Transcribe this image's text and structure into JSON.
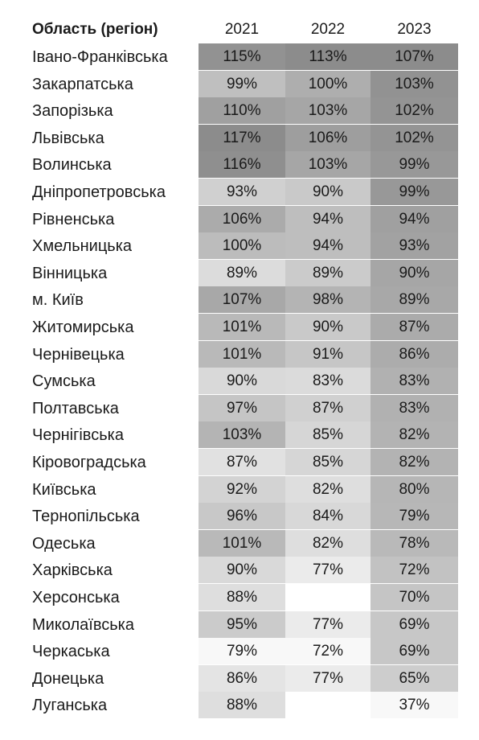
{
  "chart_data": {
    "type": "heatmap",
    "header": {
      "region_label": "Область (регіон)",
      "years": [
        "2021",
        "2022",
        "2023"
      ]
    },
    "rows": [
      {
        "region": "Івано-Франківська",
        "values": [
          "115%",
          "113%",
          "107%"
        ]
      },
      {
        "region": "Закарпатська",
        "values": [
          "99%",
          "100%",
          "103%"
        ]
      },
      {
        "region": "Запорізька",
        "values": [
          "110%",
          "103%",
          "102%"
        ]
      },
      {
        "region": "Львівська",
        "values": [
          "117%",
          "106%",
          "102%"
        ]
      },
      {
        "region": "Волинська",
        "values": [
          "116%",
          "103%",
          "99%"
        ]
      },
      {
        "region": "Дніпропетровська",
        "values": [
          "93%",
          "90%",
          "99%"
        ]
      },
      {
        "region": "Рівненська",
        "values": [
          "106%",
          "94%",
          "94%"
        ]
      },
      {
        "region": "Хмельницька",
        "values": [
          "100%",
          "94%",
          "93%"
        ]
      },
      {
        "region": "Вінницька",
        "values": [
          "89%",
          "89%",
          "90%"
        ]
      },
      {
        "region": "м. Київ",
        "values": [
          "107%",
          "98%",
          "89%"
        ]
      },
      {
        "region": "Житомирська",
        "values": [
          "101%",
          "90%",
          "87%"
        ]
      },
      {
        "region": "Чернівецька",
        "values": [
          "101%",
          "91%",
          "86%"
        ]
      },
      {
        "region": "Сумська",
        "values": [
          "90%",
          "83%",
          "83%"
        ]
      },
      {
        "region": "Полтавська",
        "values": [
          "97%",
          "87%",
          "83%"
        ]
      },
      {
        "region": "Чернігівська",
        "values": [
          "103%",
          "85%",
          "82%"
        ]
      },
      {
        "region": "Кіровоградська",
        "values": [
          "87%",
          "85%",
          "82%"
        ]
      },
      {
        "region": "Київська",
        "values": [
          "92%",
          "82%",
          "80%"
        ]
      },
      {
        "region": "Тернопільська",
        "values": [
          "96%",
          "84%",
          "79%"
        ]
      },
      {
        "region": "Одеська",
        "values": [
          "101%",
          "82%",
          "78%"
        ]
      },
      {
        "region": "Харківська",
        "values": [
          "90%",
          "77%",
          "72%"
        ]
      },
      {
        "region": "Херсонська",
        "values": [
          "88%",
          "",
          "70%"
        ]
      },
      {
        "region": "Миколаївська",
        "values": [
          "95%",
          "77%",
          "69%"
        ]
      },
      {
        "region": "Черкаська",
        "values": [
          "79%",
          "72%",
          "69%"
        ]
      },
      {
        "region": "Донецька",
        "values": [
          "86%",
          "77%",
          "65%"
        ]
      },
      {
        "region": "Луганська",
        "values": [
          "88%",
          "",
          "37%"
        ]
      }
    ]
  }
}
